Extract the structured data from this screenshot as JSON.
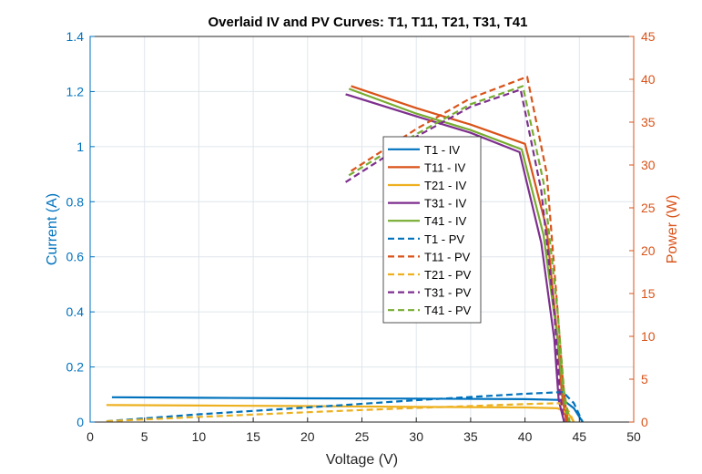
{
  "chart_data": {
    "type": "line",
    "title": "Overlaid IV and PV Curves: T1, T11, T21, T31, T41",
    "xlabel": "Voltage (V)",
    "ylabel_left": "Current (A)",
    "ylabel_right": "Power (W)",
    "xlim": [
      0,
      50
    ],
    "ylim_left": [
      0,
      1.4
    ],
    "ylim_right": [
      0,
      45
    ],
    "x_ticks": [
      "0",
      "5",
      "10",
      "15",
      "20",
      "25",
      "30",
      "35",
      "40",
      "45",
      "50"
    ],
    "y_left_ticks": [
      "0",
      "0.2",
      "0.4",
      "0.6",
      "0.8",
      "1",
      "1.2",
      "1.4"
    ],
    "y_right_ticks": [
      "0",
      "5",
      "10",
      "15",
      "20",
      "25",
      "30",
      "35",
      "40",
      "45"
    ],
    "grid": true,
    "legend_position": "center",
    "colors": {
      "T1": "#0072BD",
      "T11": "#D95319",
      "T21": "#EDB120",
      "T31": "#7E2F8E",
      "T41": "#77AC30",
      "left_axis": "#0072BD",
      "right_axis": "#D95319"
    },
    "series": [
      {
        "name": "T1 - IV",
        "color": "#0072BD",
        "dash": false,
        "axis": "left",
        "x": [
          2,
          10,
          20,
          30,
          40,
          43.5,
          44.5,
          45.3
        ],
        "y": [
          0.09,
          0.088,
          0.086,
          0.085,
          0.083,
          0.08,
          0.05,
          0.0
        ]
      },
      {
        "name": "T11 - IV",
        "color": "#D95319",
        "dash": false,
        "axis": "left",
        "x": [
          24,
          30,
          35,
          40,
          42,
          43,
          43.4,
          43.8
        ],
        "y": [
          1.22,
          1.14,
          1.08,
          1.01,
          0.7,
          0.3,
          0.1,
          0.0
        ]
      },
      {
        "name": "T21 - IV",
        "color": "#EDB120",
        "dash": false,
        "axis": "left",
        "x": [
          1.5,
          10,
          20,
          30,
          40,
          43,
          44,
          44.5
        ],
        "y": [
          0.062,
          0.06,
          0.058,
          0.055,
          0.053,
          0.05,
          0.03,
          0.0
        ]
      },
      {
        "name": "T31 - IV",
        "color": "#7E2F8E",
        "dash": false,
        "axis": "left",
        "x": [
          23.5,
          30,
          35,
          39.5,
          41.5,
          42.7,
          43.1,
          43.6
        ],
        "y": [
          1.19,
          1.11,
          1.05,
          0.98,
          0.65,
          0.3,
          0.08,
          0.0
        ]
      },
      {
        "name": "T41 - IV",
        "color": "#77AC30",
        "dash": false,
        "axis": "left",
        "x": [
          23.8,
          30,
          35,
          39.7,
          41.7,
          43.0,
          43.6,
          44.0
        ],
        "y": [
          1.21,
          1.12,
          1.06,
          0.99,
          0.68,
          0.3,
          0.08,
          0.0
        ]
      },
      {
        "name": "T1 - PV",
        "color": "#0072BD",
        "dash": true,
        "axis": "right",
        "x": [
          1.5,
          10,
          20,
          30,
          40,
          43.5,
          44.5,
          45.3
        ],
        "y": [
          0.1,
          0.9,
          1.7,
          2.55,
          3.3,
          3.5,
          2.2,
          0.0
        ]
      },
      {
        "name": "T11 - PV",
        "color": "#D95319",
        "dash": true,
        "axis": "right",
        "x": [
          24,
          30,
          35,
          40.2,
          42,
          43,
          43.5,
          43.9
        ],
        "y": [
          29.3,
          34.2,
          37.8,
          40.3,
          29.0,
          13.0,
          4.5,
          0.0
        ]
      },
      {
        "name": "T21 - PV",
        "color": "#EDB120",
        "dash": true,
        "axis": "right",
        "x": [
          1.5,
          10,
          20,
          30,
          40,
          43.2,
          44,
          44.5
        ],
        "y": [
          0.1,
          0.6,
          1.15,
          1.65,
          2.1,
          2.2,
          1.3,
          0.0
        ]
      },
      {
        "name": "T31 - PV",
        "color": "#7E2F8E",
        "dash": true,
        "axis": "right",
        "x": [
          23.5,
          30,
          35,
          39.6,
          41.5,
          42.7,
          43.2,
          43.6
        ],
        "y": [
          28.0,
          33.3,
          36.8,
          38.8,
          27.0,
          12.8,
          3.5,
          0.0
        ]
      },
      {
        "name": "T41 - PV",
        "color": "#77AC30",
        "dash": true,
        "axis": "right",
        "x": [
          23.8,
          30,
          35,
          39.8,
          41.7,
          43.0,
          43.6,
          44.1
        ],
        "y": [
          28.8,
          33.6,
          37.1,
          39.2,
          28.0,
          12.9,
          3.5,
          0.0
        ]
      }
    ]
  }
}
